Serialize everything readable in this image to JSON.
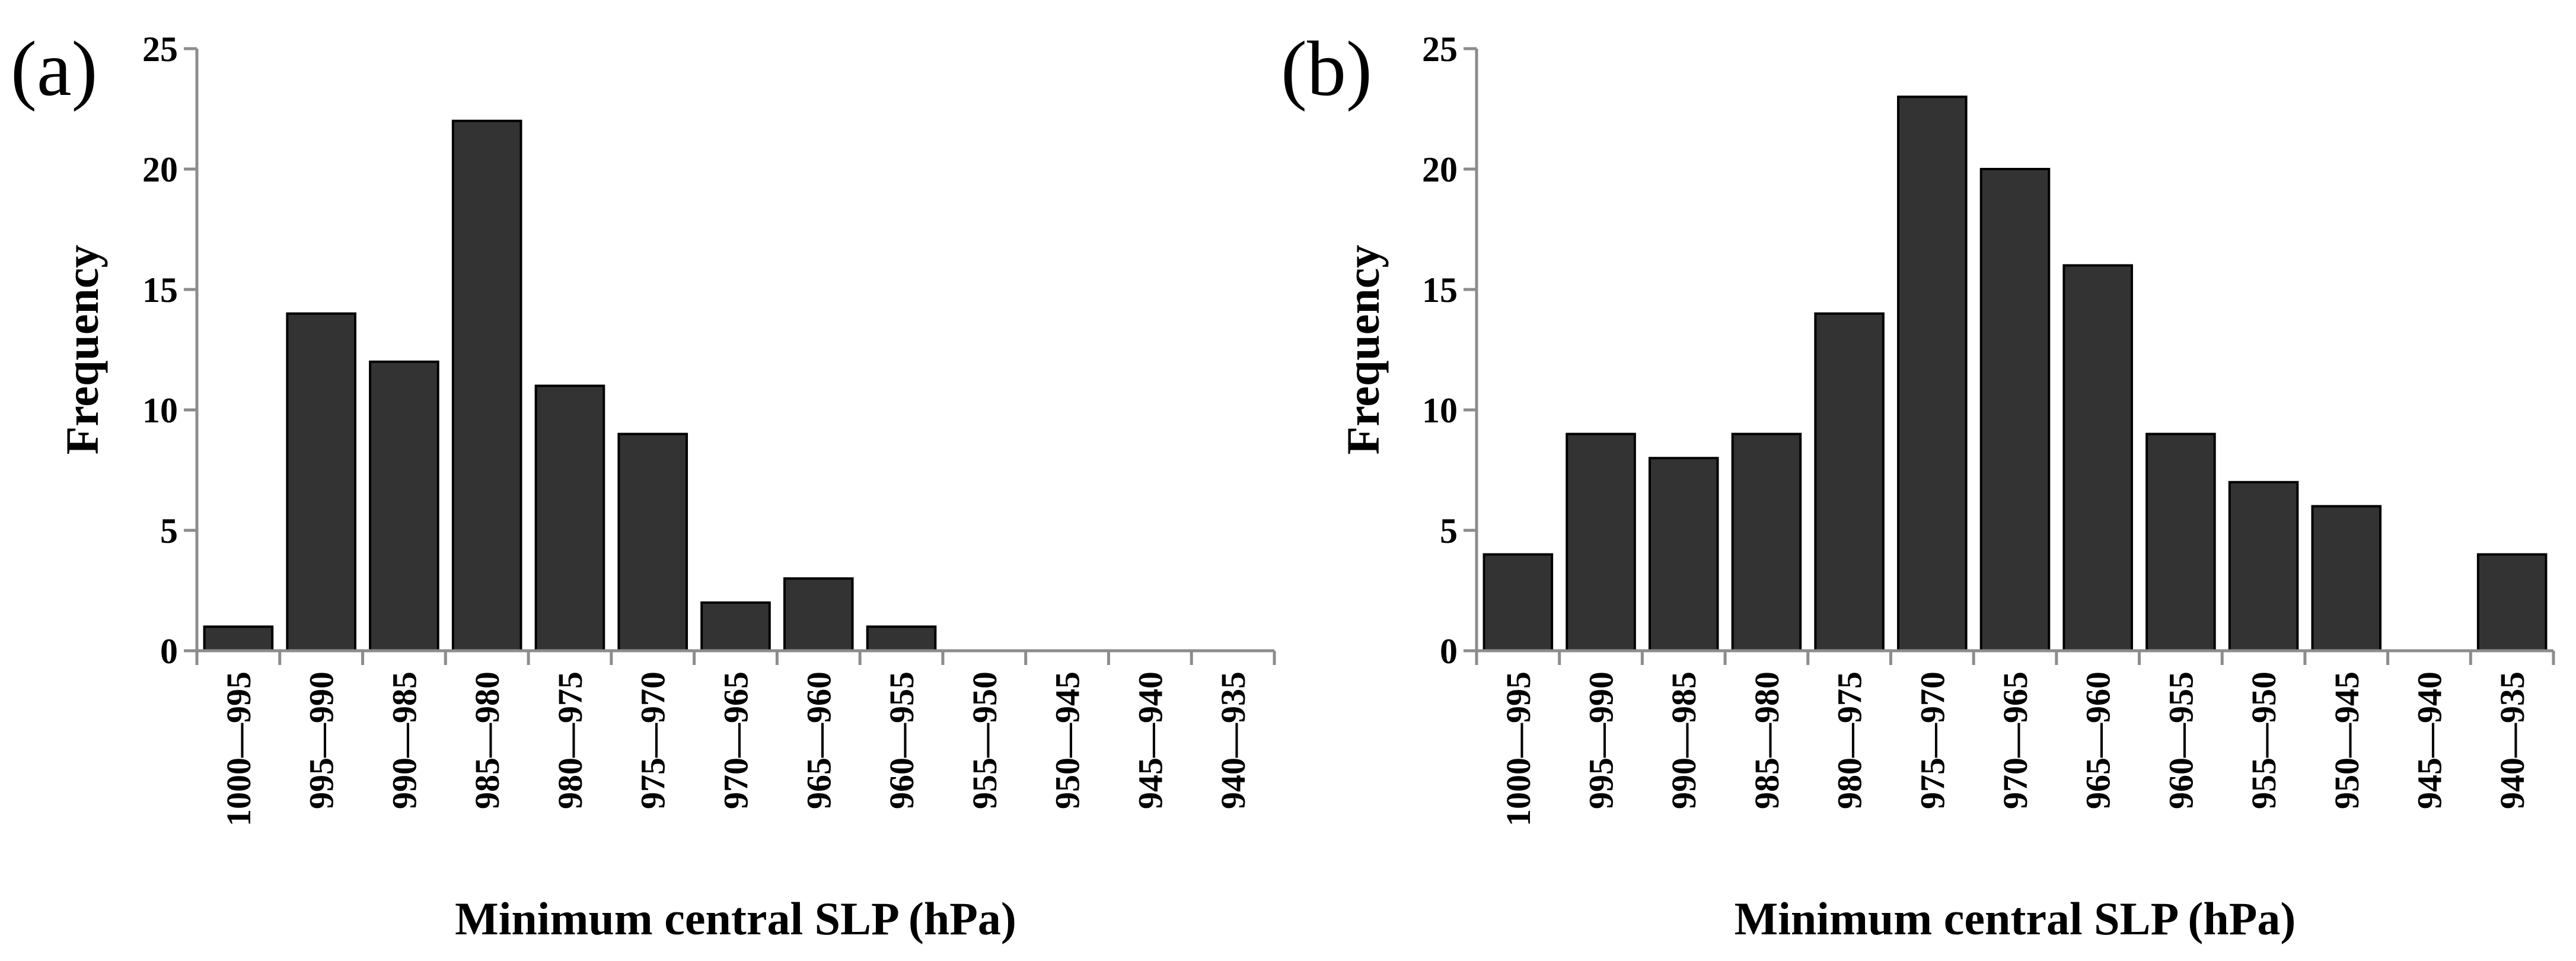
{
  "chart_data": [
    {
      "type": "bar",
      "panel_label": "(a)",
      "categories": [
        "1000—995",
        "995—990",
        "990—985",
        "985—980",
        "980—975",
        "975—970",
        "970—965",
        "965—960",
        "960—955",
        "955—950",
        "950—945",
        "945—940",
        "940—935"
      ],
      "values": [
        1,
        14,
        12,
        22,
        11,
        9,
        2,
        3,
        1,
        0,
        0,
        0,
        0
      ],
      "xlabel": "Minimum central SLP (hPa)",
      "ylabel": "Frequency",
      "ylim": [
        0,
        25
      ],
      "yticks": [
        0,
        5,
        10,
        15,
        20,
        25
      ],
      "bar_color": "#333333",
      "grid": false
    },
    {
      "type": "bar",
      "panel_label": "(b)",
      "categories": [
        "1000—995",
        "995—990",
        "990—985",
        "985—980",
        "980—975",
        "975—970",
        "970—965",
        "965—960",
        "960—955",
        "955—950",
        "950—945",
        "945—940",
        "940—935"
      ],
      "values": [
        4,
        9,
        8,
        9,
        14,
        23,
        20,
        16,
        9,
        7,
        6,
        0,
        4
      ],
      "xlabel": "Minimum central SLP (hPa)",
      "ylabel": "Frequency",
      "ylim": [
        0,
        25
      ],
      "yticks": [
        0,
        5,
        10,
        15,
        20,
        25
      ],
      "bar_color": "#333333",
      "grid": false
    }
  ]
}
